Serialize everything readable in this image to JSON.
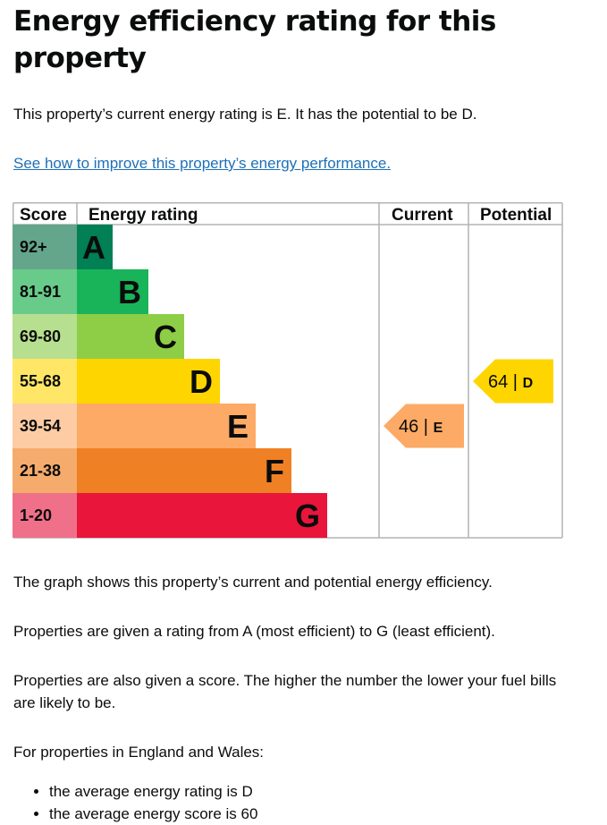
{
  "title": "Energy efficiency rating for this property",
  "lead": "This property’s current energy rating is E. It has the potential to be D.",
  "improve_link": "See how to improve this property’s energy performance.",
  "chart_data": {
    "type": "bar",
    "headers": {
      "score": "Score",
      "rating": "Energy rating",
      "current": "Current",
      "potential": "Potential"
    },
    "bands": [
      {
        "letter": "A",
        "score": "92+",
        "color": "#008054",
        "label_color": "#63a68b"
      },
      {
        "letter": "B",
        "score": "81-91",
        "color": "#19b459",
        "label_color": "#68cb89"
      },
      {
        "letter": "C",
        "score": "69-80",
        "color": "#8dce46",
        "label_color": "#b6df8f"
      },
      {
        "letter": "D",
        "score": "55-68",
        "color": "#ffd500",
        "label_color": "#ffe666"
      },
      {
        "letter": "E",
        "score": "39-54",
        "color": "#fcaa65",
        "label_color": "#fdcca4"
      },
      {
        "letter": "F",
        "score": "21-38",
        "color": "#ef8023",
        "label_color": "#f5ab6c"
      },
      {
        "letter": "G",
        "score": "1-20",
        "color": "#e9153b",
        "label_color": "#f0708a"
      }
    ],
    "current": {
      "score": 46,
      "letter": "E",
      "color": "#fcaa65",
      "label": "46 | E"
    },
    "potential": {
      "score": 64,
      "letter": "D",
      "color": "#ffd500",
      "label": "64 | D"
    }
  },
  "explanation_1": "The graph shows this property’s current and potential energy efficiency.",
  "explanation_2": "Properties are given a rating from A (most efficient) to G (least efficient).",
  "explanation_3": "Properties are also given a score. The higher the number the lower your fuel bills are likely to be.",
  "region_intro": "For properties in England and Wales:",
  "averages": [
    "the average energy rating is D",
    "the average energy score is 60"
  ]
}
